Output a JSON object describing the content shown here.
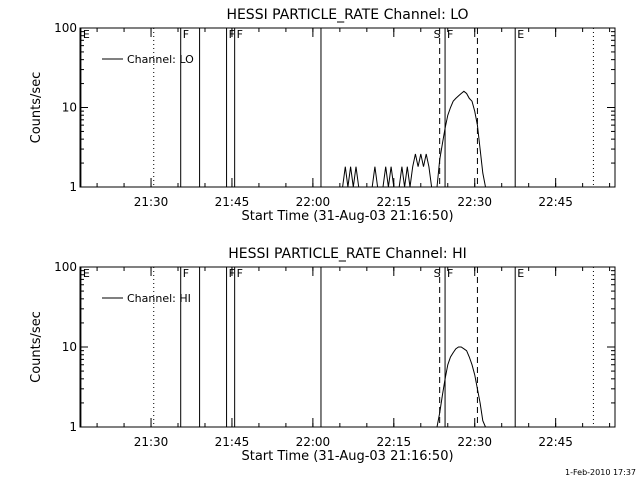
{
  "footer": {
    "stamp": "1-Feb-2010 17:37"
  },
  "chart_data": [
    {
      "type": "line",
      "title": "HESSI PARTICLE_RATE Channel: LO",
      "xlabel": "Start Time (31-Aug-03 21:16:50)",
      "ylabel": "Counts/sec",
      "yscale": "log",
      "xlim": [
        "21:16:50",
        "22:56:00"
      ],
      "ylim": [
        1,
        100
      ],
      "x_ticks": [
        "21:30",
        "21:45",
        "22:00",
        "22:15",
        "22:30",
        "22:45"
      ],
      "y_ticks": [
        {
          "value": 1,
          "label": "1"
        },
        {
          "value": 10,
          "label": "10"
        },
        {
          "value": 100,
          "label": "100"
        }
      ],
      "legend": {
        "position": "top-left",
        "entries": [
          "Channel: LO"
        ]
      },
      "markers": [
        {
          "time": "21:17:00",
          "style": "solid",
          "label": "E"
        },
        {
          "time": "21:30:30",
          "style": "dotted",
          "label": ""
        },
        {
          "time": "21:35:30",
          "style": "solid",
          "label": "F"
        },
        {
          "time": "21:39:00",
          "style": "solid",
          "label": ""
        },
        {
          "time": "21:44:00",
          "style": "solid",
          "label": "F"
        },
        {
          "time": "21:45:30",
          "style": "solid",
          "label": "F"
        },
        {
          "time": "22:01:30",
          "style": "solid",
          "label": ""
        },
        {
          "time": "22:23:30",
          "style": "dashed",
          "label": "S"
        },
        {
          "time": "22:24:30",
          "style": "solid",
          "label": "F"
        },
        {
          "time": "22:30:30",
          "style": "dashed",
          "label": ""
        },
        {
          "time": "22:37:30",
          "style": "solid",
          "label": "E"
        },
        {
          "time": "22:52:00",
          "style": "dotted",
          "label": ""
        }
      ],
      "series": [
        {
          "name": "Channel: LO",
          "points": [
            [
              "22:05:30",
              1
            ],
            [
              "22:06:00",
              1.8
            ],
            [
              "22:06:30",
              1
            ],
            [
              "22:07:00",
              1.8
            ],
            [
              "22:07:30",
              1
            ],
            [
              "22:08:00",
              1.8
            ],
            [
              "22:08:30",
              1
            ],
            [
              "22:11:00",
              1
            ],
            [
              "22:11:30",
              1.8
            ],
            [
              "22:12:00",
              1
            ],
            [
              "22:13:00",
              1
            ],
            [
              "22:13:30",
              1.8
            ],
            [
              "22:14:00",
              1
            ],
            [
              "22:14:30",
              1.8
            ],
            [
              "22:15:00",
              1
            ],
            [
              "22:16:00",
              1
            ],
            [
              "22:16:30",
              1.8
            ],
            [
              "22:17:00",
              1
            ],
            [
              "22:17:30",
              1.8
            ],
            [
              "22:18:00",
              1
            ],
            [
              "22:18:30",
              1.8
            ],
            [
              "22:19:00",
              2.6
            ],
            [
              "22:19:30",
              1.8
            ],
            [
              "22:20:00",
              2.6
            ],
            [
              "22:20:30",
              1.8
            ],
            [
              "22:21:00",
              2.6
            ],
            [
              "22:21:30",
              1.8
            ],
            [
              "22:22:00",
              1
            ],
            [
              "22:23:00",
              1
            ],
            [
              "22:23:30",
              2.2
            ],
            [
              "22:24:00",
              3.5
            ],
            [
              "22:24:30",
              5.5
            ],
            [
              "22:25:00",
              8
            ],
            [
              "22:25:30",
              10
            ],
            [
              "22:26:00",
              12
            ],
            [
              "22:26:30",
              13
            ],
            [
              "22:27:00",
              14
            ],
            [
              "22:27:30",
              15
            ],
            [
              "22:28:00",
              16
            ],
            [
              "22:28:30",
              15
            ],
            [
              "22:29:00",
              13
            ],
            [
              "22:29:30",
              12
            ],
            [
              "22:30:00",
              9
            ],
            [
              "22:30:30",
              6
            ],
            [
              "22:31:00",
              3
            ],
            [
              "22:31:30",
              1.5
            ],
            [
              "22:32:00",
              1
            ]
          ]
        }
      ]
    },
    {
      "type": "line",
      "title": "HESSI PARTICLE_RATE Channel: HI",
      "xlabel": "Start Time (31-Aug-03 21:16:50)",
      "ylabel": "Counts/sec",
      "yscale": "log",
      "xlim": [
        "21:16:50",
        "22:56:00"
      ],
      "ylim": [
        1,
        100
      ],
      "x_ticks": [
        "21:30",
        "21:45",
        "22:00",
        "22:15",
        "22:30",
        "22:45"
      ],
      "y_ticks": [
        {
          "value": 1,
          "label": "1"
        },
        {
          "value": 10,
          "label": "10"
        },
        {
          "value": 100,
          "label": "100"
        }
      ],
      "legend": {
        "position": "top-left",
        "entries": [
          "Channel: HI"
        ]
      },
      "markers": [
        {
          "time": "21:17:00",
          "style": "solid",
          "label": "E"
        },
        {
          "time": "21:30:30",
          "style": "dotted",
          "label": ""
        },
        {
          "time": "21:35:30",
          "style": "solid",
          "label": "F"
        },
        {
          "time": "21:39:00",
          "style": "solid",
          "label": ""
        },
        {
          "time": "21:44:00",
          "style": "solid",
          "label": "F"
        },
        {
          "time": "21:45:30",
          "style": "solid",
          "label": "F"
        },
        {
          "time": "22:01:30",
          "style": "solid",
          "label": ""
        },
        {
          "time": "22:23:30",
          "style": "dashed",
          "label": "S"
        },
        {
          "time": "22:24:30",
          "style": "solid",
          "label": "F"
        },
        {
          "time": "22:30:30",
          "style": "dashed",
          "label": ""
        },
        {
          "time": "22:37:30",
          "style": "solid",
          "label": "E"
        },
        {
          "time": "22:52:00",
          "style": "dotted",
          "label": ""
        }
      ],
      "series": [
        {
          "name": "Channel: HI",
          "points": [
            [
              "22:23:00",
              1
            ],
            [
              "22:23:30",
              1.5
            ],
            [
              "22:24:00",
              2.5
            ],
            [
              "22:24:30",
              4
            ],
            [
              "22:25:00",
              6
            ],
            [
              "22:25:30",
              7.5
            ],
            [
              "22:26:00",
              8.5
            ],
            [
              "22:26:30",
              9.5
            ],
            [
              "22:27:00",
              10
            ],
            [
              "22:27:30",
              10
            ],
            [
              "22:28:00",
              9.5
            ],
            [
              "22:28:30",
              9
            ],
            [
              "22:29:00",
              7.5
            ],
            [
              "22:29:30",
              6
            ],
            [
              "22:30:00",
              4.5
            ],
            [
              "22:30:30",
              3
            ],
            [
              "22:31:00",
              2
            ],
            [
              "22:31:30",
              1.2
            ],
            [
              "22:32:00",
              1
            ]
          ]
        }
      ]
    }
  ]
}
